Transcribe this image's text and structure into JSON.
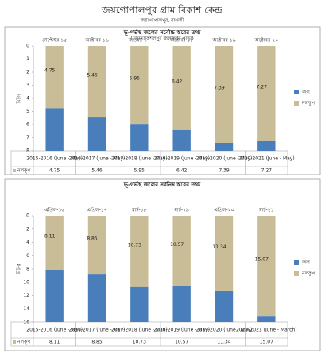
{
  "header": {
    "title": "জয়গোপালপুর গ্রাম বিকাশ কেন্দ্র",
    "subtitle": "জয়গোপালপুর, বাগজী"
  },
  "chart_data": [
    {
      "type": "bar",
      "stacked": true,
      "y_inverted": true,
      "title": "ভূ-গর্ভস্থ জলের সর্বোচ্চ স্তরের তথ্য",
      "subtitle": "(জোতাকিশলপুর জলজারি পাড়া)",
      "y_label": "মিটার",
      "categories": [
        "2015-2016 (June - May)",
        "2016-2017 (June - May)",
        "2017-2018 (June - May)",
        "2018-2019 (June - May)",
        "2019-2020 (June - May)",
        "2020-2021 (June - May)"
      ],
      "top_labels": [
        "সেপ্টেম্বর-১৫",
        "অক্টোবর-১৬",
        "নভেম্বর-১৭",
        "অক্টোবর-১৮",
        "অক্টোবর-১৯",
        "অক্টোবর-২০"
      ],
      "series": [
        {
          "name": "নলকূপ",
          "color": "#c9bd97",
          "values": [
            4.75,
            5.46,
            5.95,
            6.42,
            7.39,
            7.27
          ]
        },
        {
          "name": "জল",
          "color": "#4a7ebb",
          "values": [
            3.25,
            2.54,
            2.05,
            1.58,
            0.61,
            0.73
          ]
        }
      ],
      "ylim": [
        0,
        8
      ],
      "yticks": [
        0,
        1,
        2,
        3,
        4,
        5,
        6,
        7,
        8
      ]
    },
    {
      "type": "bar",
      "stacked": true,
      "y_inverted": true,
      "title": "ভূ-গর্ভস্থ জলের সর্বনিম্ন স্তরের তথ্য",
      "y_label": "মিটার",
      "categories": [
        "2015-2016 (June - May)",
        "2016-2017 (June - May)",
        "2017-2018 (June - May)",
        "2018-2019 (June - May)",
        "2019-2020 (June - May)",
        "2020-2021 (June - March)"
      ],
      "top_labels": [
        "এপ্রিল-১৬",
        "এপ্রিল-১৭",
        "মার্চ-১৮",
        "মার্চ-১৯",
        "এপ্রিল-২০",
        "মার্চ-২১"
      ],
      "series": [
        {
          "name": "নলকূপ",
          "color": "#c9bd97",
          "values": [
            8.11,
            8.85,
            10.73,
            10.57,
            11.34,
            15.07
          ]
        },
        {
          "name": "জল",
          "color": "#4a7ebb",
          "values": [
            7.89,
            7.15,
            5.27,
            5.43,
            4.66,
            0.93
          ]
        }
      ],
      "ylim": [
        0,
        16
      ],
      "yticks": [
        0,
        2,
        4,
        6,
        8,
        10,
        12,
        14,
        16
      ]
    }
  ]
}
